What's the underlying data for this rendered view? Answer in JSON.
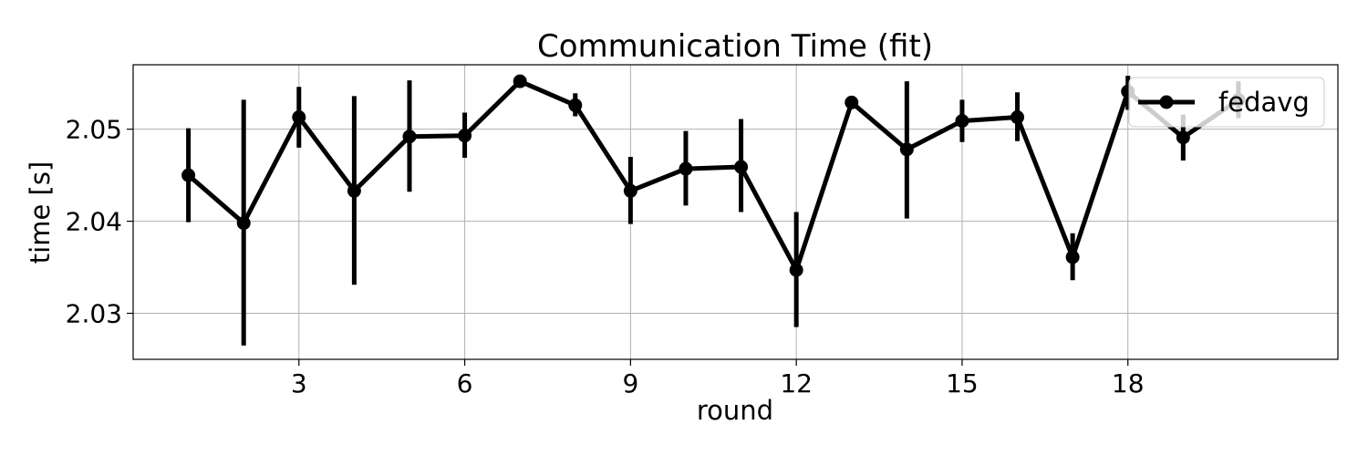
{
  "chart_data": {
    "type": "line",
    "title": "Communication Time (fit)",
    "xlabel": "round",
    "ylabel": "time [s]",
    "xlim": [
      0.0,
      21.8
    ],
    "ylim": [
      2.025,
      2.057
    ],
    "xticks": [
      3,
      6,
      9,
      12,
      15,
      18
    ],
    "yticks": [
      2.03,
      2.04,
      2.05
    ],
    "ytick_labels": [
      "2.03",
      "2.04",
      "2.05"
    ],
    "grid": true,
    "legend_position": "top-right",
    "series": [
      {
        "name": "fedavg",
        "color": "#000000",
        "marker": "circle",
        "x": [
          1,
          2,
          3,
          4,
          5,
          6,
          7,
          8,
          9,
          10,
          11,
          12,
          13,
          14,
          15,
          16,
          17,
          18,
          19,
          20
        ],
        "y": [
          2.045,
          2.0398,
          2.0513,
          2.0433,
          2.0492,
          2.0493,
          2.0552,
          2.0526,
          2.0433,
          2.0457,
          2.0459,
          2.0347,
          2.0529,
          2.0478,
          2.0509,
          2.0513,
          2.0361,
          2.0541,
          2.0491,
          2.0532
        ],
        "err_low": [
          2.0399,
          2.0265,
          2.048,
          2.0331,
          2.0432,
          2.0469,
          2.0549,
          2.0514,
          2.0397,
          2.0417,
          2.041,
          2.0285,
          2.0523,
          2.0403,
          2.0486,
          2.0487,
          2.0336,
          2.0521,
          2.0466,
          2.0512
        ],
        "err_high": [
          2.0501,
          2.0532,
          2.0546,
          2.0536,
          2.0553,
          2.0518,
          2.0555,
          2.0539,
          2.047,
          2.0498,
          2.0511,
          2.041,
          2.0536,
          2.0552,
          2.0532,
          2.054,
          2.0387,
          2.0558,
          2.0516,
          2.0552
        ]
      }
    ]
  }
}
